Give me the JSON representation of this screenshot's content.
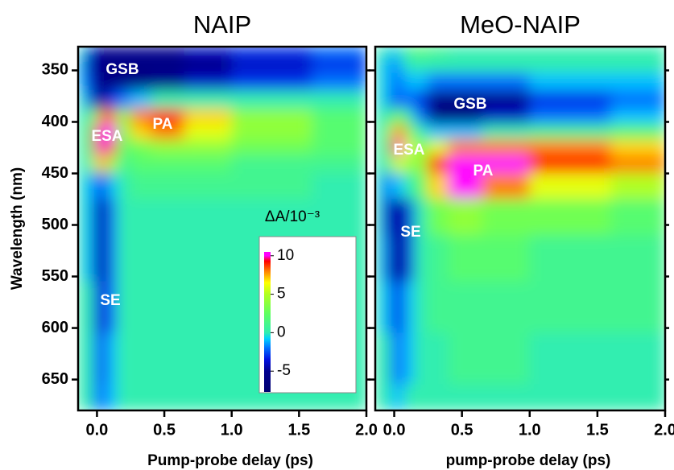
{
  "chart_data": [
    {
      "type": "heatmap",
      "title": "NAIP",
      "x_label": "Pump-probe delay (ps)",
      "y_label": "Wavelength (nm)",
      "xlim": [
        -0.14,
        2.0
      ],
      "ylim": [
        327,
        680
      ],
      "y_inverted": true,
      "xticks": [
        {
          "value": 0,
          "label": "0.0"
        },
        {
          "value": 0.5,
          "label": "0.5"
        },
        {
          "value": 1,
          "label": "1.0"
        },
        {
          "value": 1.5,
          "label": "1.5"
        },
        {
          "value": 2,
          "label": "2.0"
        }
      ],
      "yticks": [
        350,
        400,
        450,
        500,
        550,
        600,
        650
      ],
      "x": [
        -0.14,
        -0.05,
        0,
        0.05,
        0.1,
        0.2,
        0.3,
        0.5,
        0.8,
        1.2,
        2.0
      ],
      "y": [
        330,
        345,
        360,
        380,
        395,
        410,
        425,
        440,
        460,
        490,
        530,
        580,
        630,
        680
      ],
      "z": [
        [
          0,
          -3,
          -5,
          -5,
          -5,
          -5,
          -5,
          -5,
          -4,
          -3,
          -2
        ],
        [
          -1,
          -4,
          -6,
          -6,
          -6,
          -6,
          -6,
          -6,
          -6,
          -4,
          -3
        ],
        [
          -1,
          -3,
          -6,
          -6,
          -6,
          -6,
          -6,
          -5,
          -4,
          -3,
          -2
        ],
        [
          0,
          -2,
          -6,
          -5,
          -3,
          -2,
          -1,
          0,
          0,
          0,
          0
        ],
        [
          0,
          0,
          5,
          9,
          8,
          4,
          8,
          9,
          7,
          4,
          2
        ],
        [
          0,
          1,
          9,
          11,
          10,
          3,
          7,
          8,
          6,
          4,
          2
        ],
        [
          0,
          1,
          9,
          11,
          9,
          2,
          3,
          4,
          4,
          3,
          2
        ],
        [
          0,
          0,
          6,
          8,
          5,
          1,
          2,
          2,
          2,
          1,
          1
        ],
        [
          0,
          -1,
          -2,
          -3,
          -1,
          0,
          1,
          1,
          1,
          1,
          0
        ],
        [
          0,
          -1,
          -4,
          -5,
          -2,
          0,
          0,
          0,
          0,
          0,
          0
        ],
        [
          0,
          -1,
          -4,
          -5,
          -2,
          0,
          0,
          0,
          0,
          0,
          0
        ],
        [
          0,
          0,
          -3,
          -4,
          -2,
          0,
          0,
          0,
          0,
          0,
          0
        ],
        [
          0,
          0,
          -2,
          -3,
          -1,
          0,
          0,
          0,
          0,
          0,
          0
        ],
        [
          0,
          0,
          -2,
          -2,
          -1,
          0,
          0,
          0,
          0,
          0,
          0
        ]
      ],
      "annotations": [
        "GSB",
        "ESA",
        "PA",
        "SE"
      ],
      "colorscale": [
        [
          -7.7,
          "#000070"
        ],
        [
          -5,
          "#00008f"
        ],
        [
          -3.5,
          "#0010e0"
        ],
        [
          -2,
          "#0070ff"
        ],
        [
          -0.8,
          "#00d0ff"
        ],
        [
          0,
          "#30eeb0"
        ],
        [
          2.5,
          "#60ff60"
        ],
        [
          5,
          "#b0ff20"
        ],
        [
          6.5,
          "#ffff00"
        ],
        [
          8,
          "#ff8000"
        ],
        [
          9.3,
          "#ff0000"
        ],
        [
          10,
          "#ff00ff"
        ],
        [
          10.5,
          "#ff00ff"
        ]
      ],
      "colorbar": {
        "label": "ΔA/10⁻³",
        "lim": [
          -7.7,
          10.5
        ],
        "ticks": [
          -5,
          0,
          5,
          10
        ]
      }
    },
    {
      "type": "heatmap",
      "title": "MeO-NAIP",
      "x_label": "pump-probe delay (ps)",
      "xlim": [
        -0.14,
        2.0
      ],
      "ylim": [
        327,
        680
      ],
      "y_inverted": true,
      "xticks": [
        {
          "value": 0,
          "label": "0.0"
        },
        {
          "value": 0.5,
          "label": "0.5"
        },
        {
          "value": 1,
          "label": "1.0"
        },
        {
          "value": 1.5,
          "label": "1.5"
        },
        {
          "value": 2,
          "label": "2.0"
        }
      ],
      "yticks": [
        350,
        400,
        450,
        500,
        550,
        600,
        650
      ],
      "x": [
        -0.14,
        -0.05,
        0,
        0.05,
        0.1,
        0.2,
        0.3,
        0.5,
        0.8,
        1.2,
        2.0
      ],
      "y": [
        330,
        345,
        360,
        380,
        395,
        410,
        425,
        440,
        460,
        490,
        530,
        580,
        630,
        680
      ],
      "z": [
        [
          0,
          0,
          -1,
          0,
          1,
          2,
          1,
          0,
          0,
          0,
          0
        ],
        [
          0,
          -1,
          -2,
          -1,
          0,
          0,
          0,
          0,
          0,
          0,
          0
        ],
        [
          0,
          -1,
          -2,
          -2,
          -1,
          -1,
          -2,
          -2,
          -2,
          -1,
          -1
        ],
        [
          0,
          -1,
          -3,
          -2,
          -2,
          -3,
          -6,
          -6,
          -5,
          -3,
          -2
        ],
        [
          0,
          0,
          2,
          3,
          0,
          -2,
          -6,
          -6,
          -4,
          -2,
          -1
        ],
        [
          0,
          1,
          7,
          9,
          4,
          0,
          -1,
          -1,
          0,
          1,
          2
        ],
        [
          0,
          1,
          9,
          10,
          6,
          3,
          6,
          8,
          8,
          8,
          7
        ],
        [
          0,
          0,
          5,
          6,
          4,
          4,
          9,
          11,
          11,
          9,
          8
        ],
        [
          0,
          -2,
          -1,
          -1,
          0,
          2,
          7,
          11,
          8,
          6,
          5
        ],
        [
          0,
          -3,
          -5,
          -5,
          -3,
          0,
          3,
          4,
          3,
          3,
          2
        ],
        [
          0,
          -2,
          -5,
          -6,
          -3,
          0,
          1,
          2,
          2,
          1,
          1
        ],
        [
          0,
          -1,
          -3,
          -3,
          -1,
          0,
          1,
          1,
          1,
          1,
          1
        ],
        [
          0,
          0,
          -2,
          -2,
          -1,
          0,
          0,
          1,
          1,
          0,
          0
        ],
        [
          0,
          0,
          -1,
          -1,
          0,
          0,
          0,
          0,
          0,
          0,
          0
        ]
      ],
      "annotations": [
        "GSB",
        "ESA",
        "PA",
        "SE"
      ],
      "colorscale": [
        [
          -7.7,
          "#000070"
        ],
        [
          -5,
          "#00008f"
        ],
        [
          -3.5,
          "#0010e0"
        ],
        [
          -2,
          "#0070ff"
        ],
        [
          -0.8,
          "#00d0ff"
        ],
        [
          0,
          "#30eeb0"
        ],
        [
          2.5,
          "#60ff60"
        ],
        [
          5,
          "#b0ff20"
        ],
        [
          6.5,
          "#ffff00"
        ],
        [
          8,
          "#ff8000"
        ],
        [
          9.3,
          "#ff0000"
        ],
        [
          10,
          "#ff00ff"
        ],
        [
          10.5,
          "#ff00ff"
        ]
      ]
    }
  ]
}
